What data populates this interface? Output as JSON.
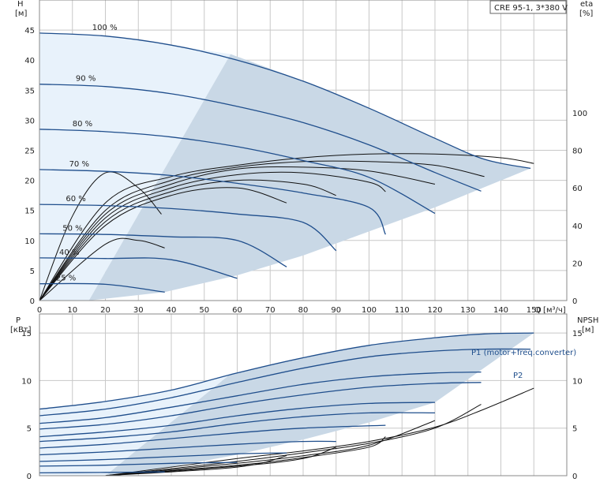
{
  "title_box": "CRE 95-1, 3*380 V",
  "chart_data": [
    {
      "type": "line",
      "ylabel": "H",
      "yunit": "[м]",
      "y2label": "eta",
      "y2unit": "[%]",
      "xlabel": "Q [м³/ч]",
      "xlim": [
        0,
        160
      ],
      "ylim": [
        0,
        50
      ],
      "y2lim": [
        0,
        160
      ],
      "xticks": [
        0,
        10,
        20,
        30,
        40,
        50,
        60,
        70,
        80,
        90,
        100,
        110,
        120,
        130,
        140,
        150
      ],
      "yticks": [
        0,
        5,
        10,
        15,
        20,
        25,
        30,
        35,
        40,
        45
      ],
      "y2ticks": [
        0,
        20,
        40,
        60,
        80,
        100
      ],
      "speed_labels": [
        "100 %",
        "90 %",
        "80 %",
        "70 %",
        "60 %",
        "50 %",
        "40 %",
        "25 %"
      ],
      "series": [
        {
          "label": "100 %",
          "color": "#1f4e8c",
          "x": [
            0,
            20,
            40,
            60,
            80,
            100,
            120,
            135,
            149
          ],
          "y": [
            44.5,
            44,
            42.5,
            40,
            36.5,
            32,
            27,
            23.5,
            22
          ]
        },
        {
          "label": "90 %",
          "color": "#1f4e8c",
          "x": [
            0,
            20,
            40,
            60,
            80,
            100,
            120,
            134
          ],
          "y": [
            36,
            35.6,
            34.4,
            32.3,
            29.6,
            25.9,
            21.3,
            18.2
          ]
        },
        {
          "label": "80 %",
          "color": "#1f4e8c",
          "x": [
            0,
            20,
            40,
            60,
            80,
            100,
            120
          ],
          "y": [
            28.5,
            28.1,
            27.2,
            25.6,
            23.3,
            20.5,
            14.5
          ]
        },
        {
          "label": "70 %",
          "color": "#1f4e8c",
          "x": [
            0,
            20,
            40,
            60,
            80,
            100,
            105
          ],
          "y": [
            21.8,
            21.5,
            20.8,
            19.5,
            17.9,
            15.5,
            11
          ]
        },
        {
          "label": "60 %",
          "color": "#1f4e8c",
          "x": [
            0,
            20,
            40,
            60,
            80,
            90
          ],
          "y": [
            16,
            15.8,
            15.3,
            14.4,
            13,
            8.3
          ]
        },
        {
          "label": "50 %",
          "color": "#1f4e8c",
          "x": [
            0,
            20,
            40,
            60,
            75
          ],
          "y": [
            11.1,
            11,
            10.6,
            10,
            5.6
          ]
        },
        {
          "label": "40 %",
          "color": "#1f4e8c",
          "x": [
            0,
            20,
            40,
            60
          ],
          "y": [
            7.1,
            7,
            6.8,
            3.7
          ]
        },
        {
          "label": "25 %",
          "color": "#1f4e8c",
          "x": [
            0,
            20,
            38
          ],
          "y": [
            2.8,
            2.7,
            1.4
          ]
        }
      ],
      "efficiency_curves": [
        {
          "x": [
            0,
            10,
            20,
            30,
            37
          ],
          "y": [
            0,
            45,
            68,
            60,
            46
          ]
        },
        {
          "x": [
            0,
            20,
            40,
            60,
            80,
            100,
            120,
            140,
            150
          ],
          "y": [
            0,
            52,
            66,
            72,
            76,
            78,
            78,
            76,
            73
          ]
        },
        {
          "x": [
            0,
            20,
            40,
            60,
            80,
            100,
            120,
            135
          ],
          "y": [
            0,
            48,
            64,
            71,
            74,
            74,
            72,
            66
          ]
        },
        {
          "x": [
            0,
            20,
            40,
            60,
            80,
            100,
            120
          ],
          "y": [
            0,
            46,
            62,
            70,
            71,
            69,
            62
          ]
        },
        {
          "x": [
            0,
            20,
            40,
            60,
            80,
            100,
            105
          ],
          "y": [
            0,
            44,
            60,
            67,
            68,
            63,
            58
          ]
        },
        {
          "x": [
            0,
            20,
            40,
            60,
            80,
            90
          ],
          "y": [
            0,
            42,
            58,
            64,
            62,
            56
          ]
        },
        {
          "x": [
            0,
            20,
            40,
            60,
            75
          ],
          "y": [
            0,
            40,
            56,
            60,
            52
          ]
        },
        {
          "x": [
            0,
            20,
            30,
            38
          ],
          "y": [
            0,
            30,
            32,
            28
          ]
        }
      ]
    },
    {
      "type": "line",
      "ylabel": "P",
      "yunit": "[кВт]",
      "y2label": "NPSH",
      "y2unit": "[м]",
      "xlim": [
        0,
        160
      ],
      "ylim": [
        0,
        17
      ],
      "y2lim": [
        0,
        17
      ],
      "yticks": [
        0,
        5,
        10,
        15
      ],
      "y2ticks": [
        0,
        5,
        10,
        15
      ],
      "series": [
        {
          "label": "P1 (motor+freq.converter)",
          "color": "#1f4e8c",
          "x": [
            0,
            20,
            40,
            60,
            80,
            100,
            120,
            135,
            150
          ],
          "y": [
            7,
            7.8,
            9,
            10.8,
            12.4,
            13.7,
            14.5,
            14.9,
            15
          ]
        },
        {
          "label": "P2",
          "color": "#1f4e8c",
          "x": [
            0,
            20,
            40,
            60,
            80,
            100,
            120,
            135,
            149
          ],
          "y": [
            6.3,
            7,
            8.2,
            9.8,
            11.3,
            12.5,
            13.1,
            13.3,
            13.3
          ]
        },
        {
          "label": "",
          "color": "#1f4e8c",
          "x": [
            0,
            20,
            40,
            60,
            80,
            100,
            120,
            134
          ],
          "y": [
            5.5,
            6.1,
            7.2,
            8.4,
            9.6,
            10.4,
            10.8,
            10.9
          ]
        },
        {
          "label": "",
          "color": "#1f4e8c",
          "x": [
            0,
            20,
            40,
            60,
            80,
            100,
            120,
            134
          ],
          "y": [
            4.9,
            5.4,
            6.3,
            7.5,
            8.5,
            9.3,
            9.7,
            9.8
          ]
        },
        {
          "label": "",
          "color": "#1f4e8c",
          "x": [
            0,
            20,
            40,
            60,
            80,
            100,
            120
          ],
          "y": [
            4.1,
            4.6,
            5.3,
            6.3,
            7.1,
            7.6,
            7.7
          ]
        },
        {
          "label": "",
          "color": "#1f4e8c",
          "x": [
            0,
            20,
            40,
            60,
            80,
            100,
            120
          ],
          "y": [
            3.6,
            4,
            4.6,
            5.5,
            6.2,
            6.6,
            6.6
          ]
        },
        {
          "label": "",
          "color": "#1f4e8c",
          "x": [
            0,
            20,
            40,
            60,
            80,
            105
          ],
          "y": [
            2.9,
            3.3,
            3.9,
            4.5,
            5,
            5.3
          ]
        },
        {
          "label": "",
          "color": "#1f4e8c",
          "x": [
            0,
            20,
            40,
            60,
            80,
            90
          ],
          "y": [
            2.2,
            2.5,
            2.9,
            3.3,
            3.6,
            3.6
          ]
        },
        {
          "label": "",
          "color": "#1f4e8c",
          "x": [
            0,
            20,
            40,
            60,
            75
          ],
          "y": [
            1.5,
            1.7,
            2,
            2.3,
            2.4
          ]
        },
        {
          "label": "",
          "color": "#1f4e8c",
          "x": [
            0,
            20,
            40,
            60
          ],
          "y": [
            1,
            1.1,
            1.3,
            1.4
          ]
        },
        {
          "label": "",
          "color": "#1f4e8c",
          "x": [
            0,
            20,
            38
          ],
          "y": [
            0.3,
            0.35,
            0.4
          ]
        }
      ],
      "npsh_curves": [
        {
          "x": [
            20,
            60,
            80,
            100,
            120,
            135,
            150
          ],
          "y": [
            0,
            1.8,
            2.6,
            3.6,
            5.1,
            7,
            9.2
          ]
        },
        {
          "x": [
            20,
            60,
            80,
            100,
            120,
            134
          ],
          "y": [
            0,
            1.5,
            2.4,
            3.4,
            5,
            7.5
          ]
        },
        {
          "x": [
            20,
            60,
            80,
            100,
            120
          ],
          "y": [
            0,
            1.3,
            2.1,
            3.2,
            5.8
          ]
        },
        {
          "x": [
            20,
            60,
            80,
            100,
            105
          ],
          "y": [
            0,
            1.1,
            1.9,
            3,
            4.1
          ]
        },
        {
          "x": [
            20,
            60,
            80,
            90
          ],
          "y": [
            0,
            1,
            1.8,
            3
          ]
        },
        {
          "x": [
            20,
            60,
            75
          ],
          "y": [
            0,
            0.9,
            2.1
          ]
        }
      ]
    }
  ]
}
